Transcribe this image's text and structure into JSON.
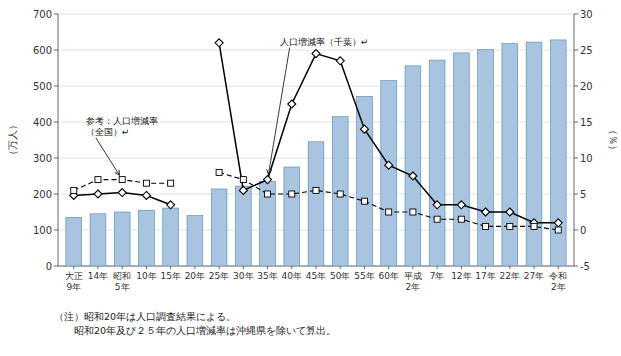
{
  "chart_data": {
    "type": "bar",
    "categories": [
      "大正\n9年",
      "14年",
      "昭和\n5年",
      "10年",
      "15年",
      "20年",
      "25年",
      "30年",
      "35年",
      "40年",
      "45年",
      "50年",
      "55年",
      "60年",
      "平成\n2年",
      "7年",
      "12年",
      "17年",
      "22年",
      "27年",
      "令和\n2年"
    ],
    "series": [
      {
        "type": "bar",
        "color": "#a8c4e0",
        "values": [
          135,
          145,
          150,
          155,
          161,
          140,
          214,
          222,
          235,
          275,
          345,
          415,
          471,
          515,
          556,
          572,
          592,
          601,
          618,
          622,
          628
        ]
      },
      {
        "type": "line",
        "axis": "y2",
        "color": "#000000",
        "marker": "diamond",
        "line_style": "solid",
        "values": [
          4.8,
          5.0,
          5.2,
          4.8,
          3.5,
          null,
          26.0,
          5.5,
          7.0,
          17.5,
          24.5,
          23.5,
          14.0,
          9.0,
          7.5,
          3.5,
          3.5,
          2.5,
          2.5,
          1.0,
          1.0
        ]
      },
      {
        "type": "line",
        "axis": "y2",
        "color": "#000000",
        "marker": "square",
        "line_style": "dashed",
        "values": [
          5.5,
          7.0,
          7.0,
          6.5,
          6.5,
          null,
          8.0,
          7.0,
          5.0,
          5.0,
          5.5,
          5.0,
          4.0,
          2.5,
          2.5,
          1.5,
          1.5,
          0.5,
          0.5,
          0.5,
          0.0
        ]
      }
    ],
    "ylim": [
      0,
      700
    ],
    "yticks": [
      0,
      100,
      200,
      300,
      400,
      500,
      600,
      700
    ],
    "y2lim": [
      -5,
      30
    ],
    "y2ticks": [
      -5,
      0,
      5,
      10,
      15,
      20,
      25,
      30
    ],
    "ylabel": "（万人）",
    "y2label": "（％）",
    "grid": true,
    "annotations": [
      "人口増減率（千葉）↵",
      "参考：人口増減率\n（全国）↵"
    ],
    "notes": [
      "（注）昭和20年は人口調査結果による。",
      "　　昭和20年及び２５年の人口増減率は沖縄県を除いて算出。"
    ]
  }
}
